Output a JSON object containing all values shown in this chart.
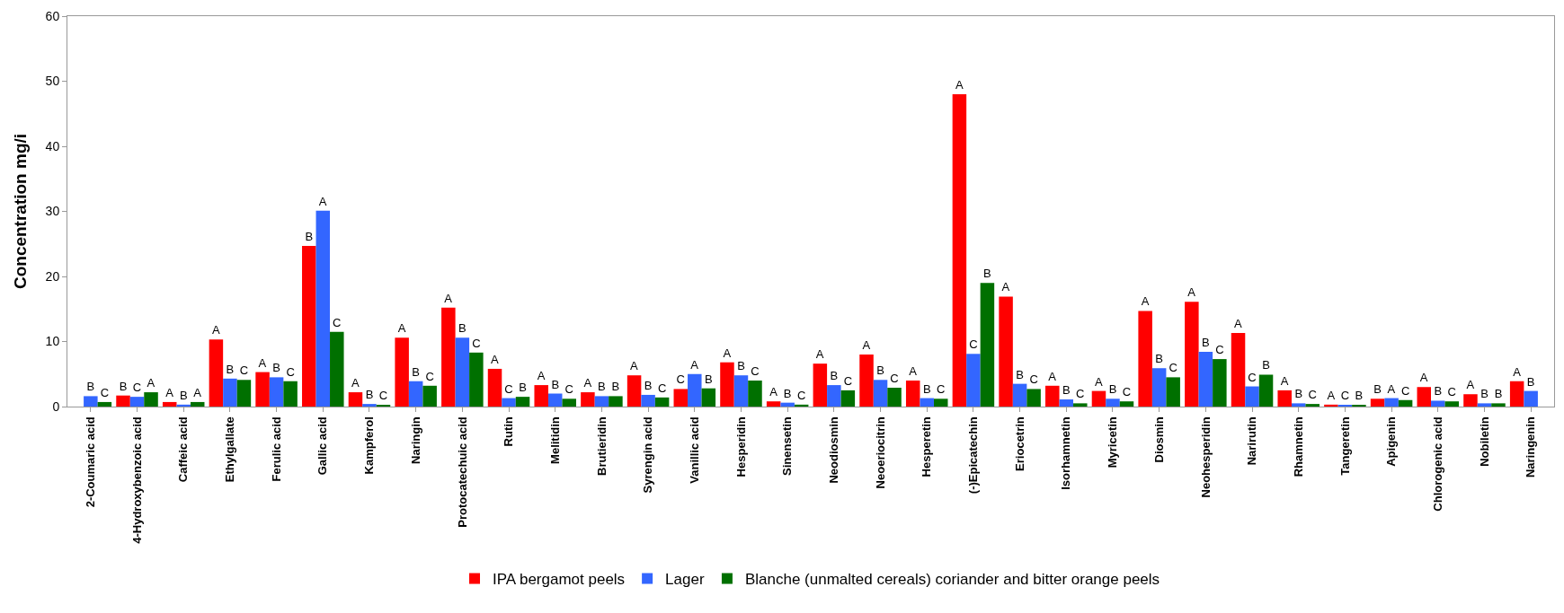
{
  "chart_data": {
    "type": "bar",
    "ylabel": "Concentration mg/i",
    "categories": [
      "2-Coumaric acid",
      "4-Hydroxybenzoic acid",
      "Caffeic acid",
      "Ethylgallate",
      "Ferulic acid",
      "Gallic acid",
      "Kampferol",
      "Naringin",
      "Protocatechuic acid",
      "Rutin",
      "Melitidin",
      "Brutieridin",
      "Syrengin acid",
      "Vanillic acid",
      "Hesperidin",
      "Sinensetin",
      "Neodiosmin",
      "Neoeriocitrin",
      "Hesperetin",
      "(-)Epicatechin",
      "Eriocetrin",
      "Isorhamnetin",
      "Myricetin",
      "Diosmin",
      "Neohesperidin",
      "Narirutin",
      "Rhamnetin",
      "Tangeretin",
      "Apigenin",
      "Chlorogenic acid",
      "Nobiletin",
      "Naringenin"
    ],
    "series": [
      {
        "name": "IPA bergamot peels",
        "color": "#ff0000",
        "values": [
          null,
          1.7,
          0.7,
          10.3,
          5.3,
          24.7,
          2.2,
          10.6,
          15.2,
          5.8,
          3.3,
          2.2,
          4.8,
          2.7,
          6.8,
          0.8,
          6.6,
          8.0,
          4.0,
          48,
          16.9,
          3.2,
          2.4,
          14.7,
          16.1,
          11.3,
          2.5,
          0.3,
          1.2,
          3.0,
          1.9,
          3.9
        ],
        "value_labels": [
          null,
          "B",
          "A",
          "A",
          "A",
          "B",
          "A",
          "A",
          "A",
          "A",
          "A",
          "A",
          "A",
          "C",
          "A",
          "A",
          "A",
          "A",
          "A",
          "A",
          "A",
          "A",
          "A",
          "A",
          "A",
          "A",
          "A",
          "A",
          "B",
          "A",
          "A",
          "A"
        ]
      },
      {
        "name": "Lager",
        "color": "#3366ff",
        "values": [
          1.6,
          1.5,
          0.3,
          4.3,
          4.5,
          30.1,
          0.4,
          3.9,
          10.6,
          1.3,
          2.0,
          1.6,
          1.8,
          5.0,
          4.8,
          0.6,
          3.3,
          4.1,
          1.3,
          8.1,
          3.5,
          1.1,
          1.2,
          5.9,
          8.4,
          3.1,
          0.5,
          0.2,
          1.3,
          0.9,
          0.5,
          2.4
        ],
        "value_labels": [
          "B",
          "C",
          "B",
          "B",
          "B",
          "A",
          "B",
          "B",
          "B",
          "C",
          "B",
          "B",
          "B",
          "A",
          "B",
          "B",
          "B",
          "B",
          "B",
          "C",
          "B",
          "B",
          "B",
          "B",
          "B",
          "C",
          "B",
          "C",
          "A",
          "B",
          "B",
          "B"
        ]
      },
      {
        "name": "Blanche (unmalted cereals) coriander and bitter orange peels",
        "color": "#007000",
        "values": [
          0.7,
          2.2,
          0.7,
          4.1,
          3.9,
          11.5,
          0.2,
          3.2,
          8.3,
          1.5,
          1.2,
          1.6,
          1.4,
          2.8,
          4.0,
          0.3,
          2.5,
          2.9,
          1.2,
          19.0,
          2.7,
          0.5,
          0.8,
          4.5,
          7.3,
          4.9,
          0.4,
          0.2,
          1.0,
          0.8,
          0.5,
          null
        ],
        "value_labels": [
          "C",
          "A",
          "A",
          "C",
          "C",
          "C",
          "C",
          "C",
          "C",
          "B",
          "C",
          "B",
          "C",
          "B",
          "C",
          "C",
          "C",
          "C",
          "C",
          "B",
          "C",
          "C",
          "C",
          "C",
          "C",
          "B",
          "C",
          "B",
          "C",
          "C",
          "B",
          null
        ]
      }
    ],
    "ylim": [
      0,
      60
    ],
    "yticks": [
      0,
      10,
      20,
      30,
      40,
      50,
      60
    ],
    "grid": false,
    "legend": "bottom"
  }
}
